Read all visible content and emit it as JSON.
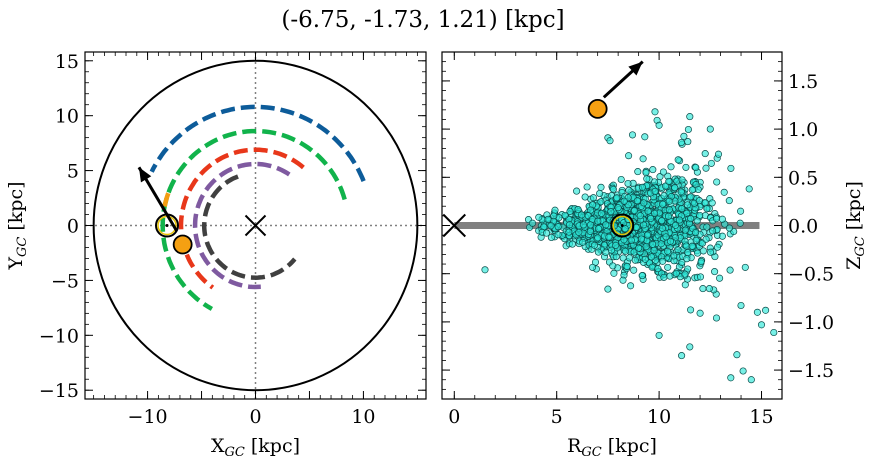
{
  "title": "(-6.75, -1.73, 1.21) [kpc]",
  "chart_data": [
    {
      "type": "line",
      "panel": "left",
      "xlabel": "X",
      "xlabel_sub": "GC",
      "xlabel_unit": " [kpc]",
      "ylabel": "Y",
      "ylabel_sub": "GC",
      "ylabel_unit": " [kpc]",
      "xlim": [
        -15.8,
        15.8
      ],
      "ylim": [
        -15.8,
        15.8
      ],
      "xticks": [
        -10,
        -5,
        0,
        5,
        10
      ],
      "xtick_labels": [
        "−10",
        "",
        "0",
        "",
        "10"
      ],
      "yticks": [
        -15,
        -10,
        -5,
        0,
        5,
        10,
        15
      ],
      "ytick_labels": [
        "−15",
        "−10",
        "−5",
        "0",
        "5",
        "10",
        "15"
      ],
      "grid": "dotted lines through origin",
      "outer_circle_radius": 15,
      "galactic_center": [
        0,
        0
      ],
      "sun_position": [
        -8.2,
        0.0
      ],
      "object_position": [
        -6.75,
        -1.73
      ],
      "velocity_arrow": {
        "from": [
          -7.3,
          -0.5
        ],
        "to": [
          -10.8,
          5.3
        ]
      },
      "arms": [
        {
          "color": "#0d5c9a",
          "radius": 10.8,
          "theta_start_deg": 22,
          "theta_end_deg": 153
        },
        {
          "color": "#11b34b",
          "radius": 8.6,
          "theta_start_deg": 16,
          "theta_end_deg": 242
        },
        {
          "color": "#e8371a",
          "radius": 6.9,
          "theta_start_deg": 50,
          "theta_end_deg": 235
        },
        {
          "color": "#7f5aa0",
          "radius": 5.6,
          "theta_start_deg": 56,
          "theta_end_deg": 275
        },
        {
          "color": "#404040",
          "radius": 4.75,
          "theta_start_deg": 110,
          "theta_end_deg": 320
        },
        {
          "color": "#f39c12",
          "radius": 8.6,
          "theta_start_deg": 160,
          "theta_end_deg": 171
        }
      ]
    },
    {
      "type": "scatter",
      "panel": "right",
      "xlabel": "R",
      "xlabel_sub": "GC",
      "xlabel_unit": " [kpc]",
      "ylabel": "Z",
      "ylabel_sub": "GC",
      "ylabel_unit": " [kpc]",
      "xlim": [
        -0.6,
        16.0
      ],
      "ylim": [
        -1.8,
        1.8
      ],
      "xticks": [
        0,
        5,
        10,
        15
      ],
      "xtick_labels": [
        "0",
        "5",
        "10",
        "15"
      ],
      "yticks": [
        -1.5,
        -1.0,
        -0.5,
        0.0,
        0.5,
        1.0,
        1.5
      ],
      "ytick_labels": [
        "−1.5",
        "−1.0",
        "−0.5",
        "0.0",
        "0.5",
        "1.0",
        "1.5"
      ],
      "galactic_plane": {
        "color": "#808080",
        "x": [
          0,
          14.9
        ],
        "y": 0
      },
      "galactic_center": [
        0,
        0
      ],
      "sun_position": [
        8.2,
        0.0
      ],
      "object_position": [
        7.0,
        1.21
      ],
      "velocity_arrow": {
        "from": [
          7.3,
          1.33
        ],
        "to": [
          9.2,
          1.7
        ]
      },
      "point_color": "#2ee8d8",
      "point_count": 1500,
      "points_sample": [
        [
          9.8,
          1.18
        ],
        [
          11.5,
          1.13
        ],
        [
          9.9,
          1.09
        ],
        [
          10.0,
          1.04
        ],
        [
          12.5,
          1.0
        ],
        [
          8.7,
          0.94
        ],
        [
          9.3,
          0.92
        ],
        [
          7.5,
          0.91
        ],
        [
          7.6,
          0.88
        ],
        [
          11.4,
          0.87
        ],
        [
          12.9,
          0.74
        ],
        [
          14.4,
          0.38
        ],
        [
          1.5,
          -0.46
        ],
        [
          7.5,
          -0.66
        ],
        [
          14.0,
          -0.83
        ],
        [
          12.0,
          -0.91
        ],
        [
          12.8,
          -0.96
        ],
        [
          15.2,
          -0.88
        ],
        [
          15.6,
          -1.11
        ],
        [
          10.0,
          -1.14
        ],
        [
          11.5,
          -1.26
        ],
        [
          11.1,
          -1.35
        ],
        [
          13.5,
          -1.58
        ],
        [
          14.1,
          -1.51
        ],
        [
          14.5,
          -1.6
        ],
        [
          13.8,
          -1.34
        ],
        [
          15.0,
          -1.03
        ],
        [
          14.8,
          -0.9
        ]
      ]
    }
  ]
}
